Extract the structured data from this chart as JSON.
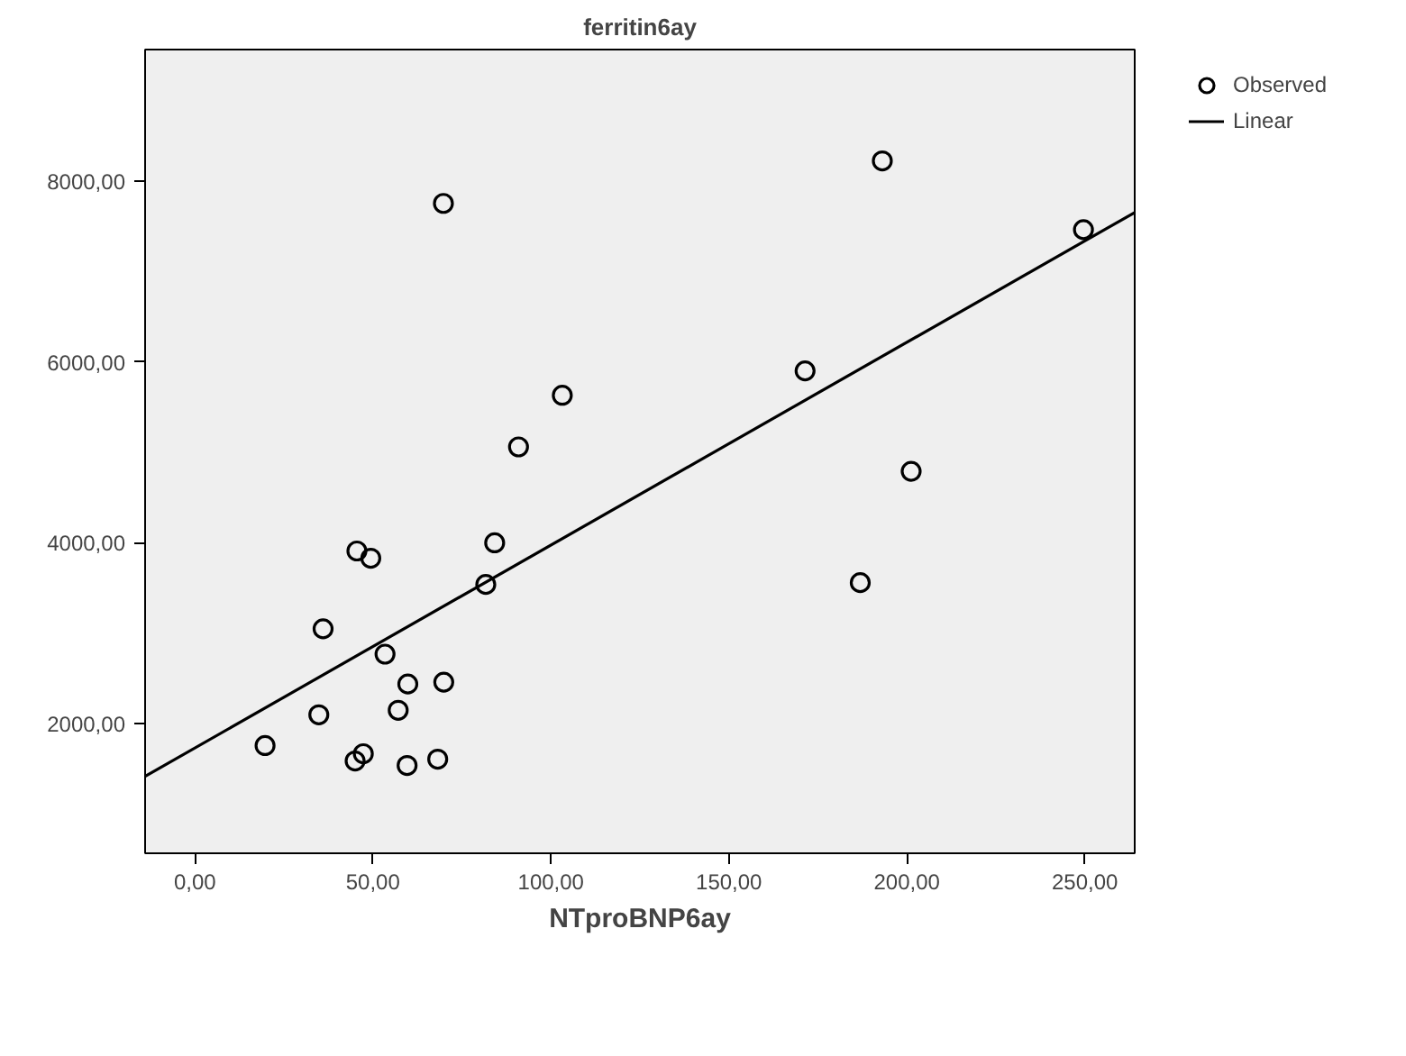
{
  "chart_data": {
    "type": "scatter",
    "title": "ferritin6ay",
    "xlabel": "NTproBNP6ay",
    "xlim": [
      -14,
      264
    ],
    "ylim": [
      570,
      9450
    ],
    "xticks": [
      {
        "value": 0,
        "label": "0,00"
      },
      {
        "value": 50,
        "label": "50,00"
      },
      {
        "value": 100,
        "label": "100,00"
      },
      {
        "value": 150,
        "label": "150,00"
      },
      {
        "value": 200,
        "label": "200,00"
      },
      {
        "value": 250,
        "label": "250,00"
      }
    ],
    "yticks": [
      {
        "value": 2000,
        "label": "2000,00"
      },
      {
        "value": 4000,
        "label": "4000,00"
      },
      {
        "value": 6000,
        "label": "6000,00"
      },
      {
        "value": 8000,
        "label": "8000,00"
      }
    ],
    "grid": false,
    "legend": "top right",
    "series": [
      {
        "name": "Observed",
        "type": "scatter",
        "marker": "circle",
        "color": "#000000",
        "x": [
          69.8,
          103.2,
          90.9,
          84.2,
          45.5,
          49.4,
          81.7,
          36.0,
          53.4,
          59.8,
          69.9,
          57.1,
          34.8,
          19.7,
          47.3,
          45.0,
          59.6,
          68.2,
          193.1,
          249.6,
          171.4,
          201.2,
          186.9
        ],
        "values": [
          7750,
          5630,
          5060,
          4000,
          3910,
          3830,
          3540,
          3050,
          2770,
          2440,
          2460,
          2150,
          2100,
          1760,
          1670,
          1590,
          1540,
          1610,
          8220,
          7460,
          5900,
          4790,
          3560
        ]
      },
      {
        "name": "Linear",
        "type": "line",
        "marker": "none",
        "color": "#000000",
        "x": [
          -14,
          264
        ],
        "values": [
          1420,
          7650
        ]
      }
    ]
  }
}
